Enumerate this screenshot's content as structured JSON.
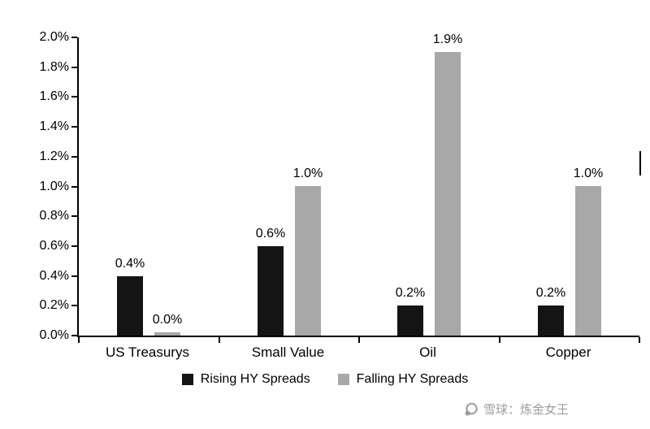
{
  "chart_data": {
    "type": "bar",
    "title": "",
    "categories": [
      "US Treasurys",
      "Small Value",
      "Oil",
      "Copper"
    ],
    "series": [
      {
        "name": "Rising HY Spreads",
        "color": "#141414",
        "values": [
          0.4,
          0.6,
          0.2,
          0.2
        ],
        "labels": [
          "0.4%",
          "0.6%",
          "0.2%",
          "0.2%"
        ]
      },
      {
        "name": "Falling HY Spreads",
        "color": "#a8a8a8",
        "values": [
          0.0,
          1.0,
          1.9,
          1.0
        ],
        "labels": [
          "0.0%",
          "1.0%",
          "1.9%",
          "1.0%"
        ]
      }
    ],
    "ylim": [
      0,
      2.0
    ],
    "y_step": 0.2,
    "y_ticks": [
      "0.0%",
      "0.2%",
      "0.4%",
      "0.6%",
      "0.8%",
      "1.0%",
      "1.2%",
      "1.4%",
      "1.6%",
      "1.8%",
      "2.0%"
    ],
    "xlabel": "",
    "ylabel": "",
    "grid": false,
    "legend_position": "bottom"
  },
  "watermark": {
    "text": "雪球：炼金女王",
    "icon": "xueqiu-snowball-icon",
    "color": "#9d9d9d"
  }
}
